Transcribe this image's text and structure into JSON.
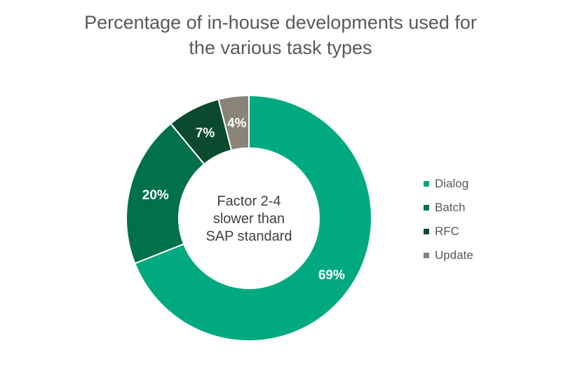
{
  "chart_data": {
    "type": "pie",
    "variant": "donut",
    "title": [
      "Percentage of in-house developments used for",
      "the various task types"
    ],
    "center_text": [
      "Factor 2-4",
      "slower than",
      "SAP standard"
    ],
    "categories": [
      "Dialog",
      "Batch",
      "RFC",
      "Update"
    ],
    "values": [
      69,
      20,
      7,
      4
    ],
    "value_labels": [
      "69%",
      "20%",
      "7%",
      "4%"
    ],
    "colors": [
      "#00a97f",
      "#00704d",
      "#0b4a2e",
      "#8a8478"
    ],
    "legend_position": "right"
  }
}
